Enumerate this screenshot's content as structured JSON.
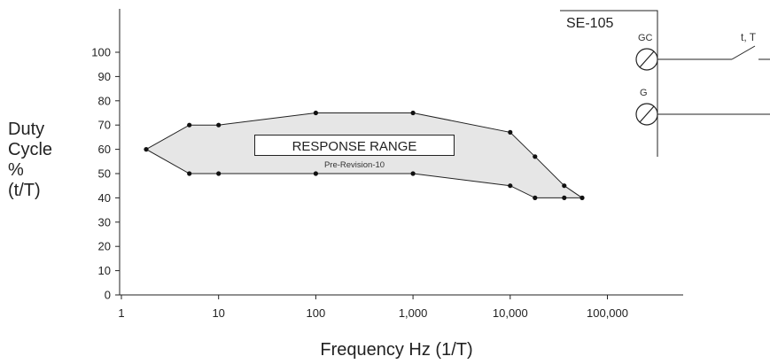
{
  "chart_data": {
    "type": "area",
    "xlabel": "Frequency Hz (1/T)",
    "ylabel_lines": [
      "Duty",
      "Cycle",
      "%",
      "(t/T)"
    ],
    "xscale": "log",
    "xlim": [
      1,
      1000000
    ],
    "ylim": [
      0,
      110
    ],
    "x_ticks": [
      1,
      10,
      100,
      1000,
      10000,
      100000
    ],
    "x_tick_labels": [
      "1",
      "10",
      "100",
      "1,000",
      "10,000",
      "100,000"
    ],
    "y_ticks": [
      0,
      10,
      20,
      30,
      40,
      50,
      60,
      70,
      80,
      90,
      100
    ],
    "y_tick_labels": [
      "0",
      "10",
      "20",
      "30",
      "40",
      "50",
      "60",
      "70",
      "80",
      "90",
      "100"
    ],
    "grid": false,
    "region": {
      "label": "RESPONSE RANGE",
      "sublabel": "Pre-Revision-10",
      "fill": "#e6e6e6",
      "upper": [
        [
          1.8,
          60
        ],
        [
          5,
          70
        ],
        [
          10,
          70
        ],
        [
          100,
          75
        ],
        [
          1000,
          75
        ],
        [
          10000,
          67
        ],
        [
          18000,
          57
        ],
        [
          36000,
          45
        ],
        [
          55000,
          40
        ]
      ],
      "lower": [
        [
          1.8,
          60
        ],
        [
          5,
          50
        ],
        [
          10,
          50
        ],
        [
          100,
          50
        ],
        [
          1000,
          50
        ],
        [
          10000,
          45
        ],
        [
          18000,
          40
        ],
        [
          36000,
          40
        ],
        [
          55000,
          40
        ]
      ]
    }
  },
  "diagram": {
    "box_title": "SE-105",
    "terminal_gc": "GC",
    "terminal_g": "G",
    "switch_label": "t, T"
  }
}
